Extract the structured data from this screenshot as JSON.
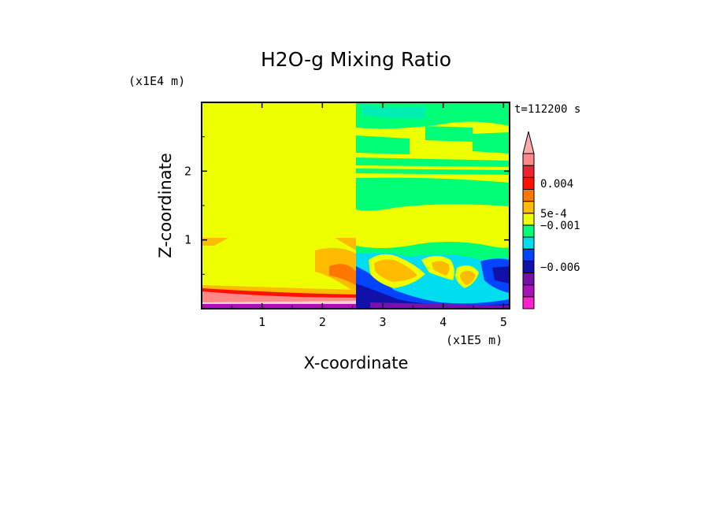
{
  "chart_data": {
    "type": "heatmap",
    "title": "H2O-g Mixing Ratio",
    "xlabel": "X-coordinate",
    "ylabel": "Z-coordinate",
    "x_scale_label": "(x1E5 m)",
    "y_scale_label": "(x1E4 m)",
    "time_label": "t=112200 s",
    "xlim": [
      0,
      5.1
    ],
    "ylim": [
      0,
      3.0
    ],
    "x_ticks": [
      {
        "value": 1,
        "label": "1"
      },
      {
        "value": 2,
        "label": "2"
      },
      {
        "value": 3,
        "label": "3"
      },
      {
        "value": 4,
        "label": "4"
      },
      {
        "value": 5,
        "label": "5"
      }
    ],
    "y_ticks": [
      {
        "value": 1,
        "label": "1"
      },
      {
        "value": 2,
        "label": "2"
      }
    ],
    "colorbar": {
      "levels": [
        {
          "color": "#ff22cc"
        },
        {
          "color": "#aa11bb"
        },
        {
          "color": "#7711aa"
        },
        {
          "color": "#1111aa"
        },
        {
          "color": "#0044ff"
        },
        {
          "color": "#00ddee"
        },
        {
          "color": "#00ff77"
        },
        {
          "color": "#eeff00"
        },
        {
          "color": "#ffbb00"
        },
        {
          "color": "#ff7700"
        },
        {
          "color": "#ff1100"
        },
        {
          "color": "#ee2233"
        },
        {
          "color": "#ff8888"
        }
      ],
      "labels": [
        {
          "text": "0.004",
          "level_boundary": 10.5
        },
        {
          "text": "5e-4",
          "level_boundary": 8.0
        },
        {
          "text": "−0.001",
          "level_boundary": 7.0
        },
        {
          "text": "−0.006",
          "level_boundary": 3.5
        }
      ],
      "extend_top_color": "#ffaaaa"
    },
    "regions": [
      {
        "color": "#eeff00",
        "x": [
          0,
          2.55
        ],
        "z": [
          0,
          3.0
        ]
      },
      {
        "color": "#eeff00",
        "x": [
          2.55,
          5.1
        ],
        "z": [
          0,
          3.0
        ]
      }
    ]
  }
}
